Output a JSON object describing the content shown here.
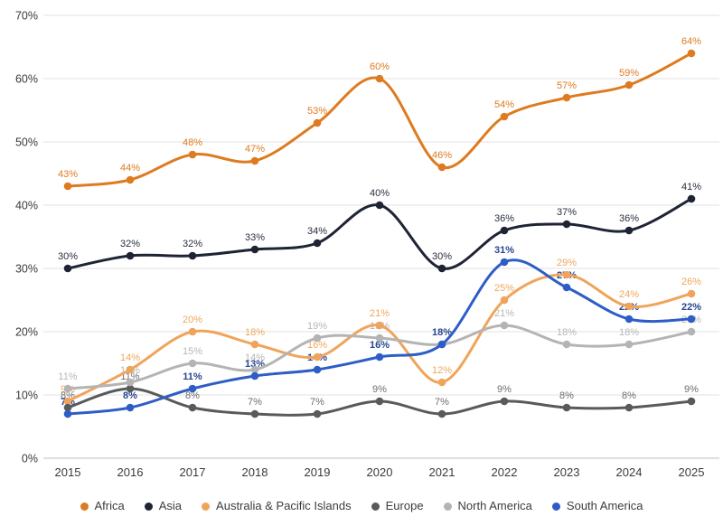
{
  "chart_data": {
    "type": "line",
    "title": "",
    "x_labels": [
      "2015",
      "2016",
      "2017",
      "2018",
      "2019",
      "2020",
      "2021",
      "2022",
      "2023",
      "2024",
      "2025"
    ],
    "ylim": [
      0,
      70
    ],
    "ytick_step": 10,
    "ytick_labels": [
      "0%",
      "10%",
      "20%",
      "30%",
      "40%",
      "50%",
      "60%",
      "70%"
    ],
    "grid": true,
    "legend_position": "bottom",
    "label_suffix": "%",
    "series": [
      {
        "name": "Africa",
        "color": "#DE7A1F",
        "label_color": "#DE7A1F",
        "bold_labels": false,
        "values": [
          43,
          44,
          48,
          47,
          53,
          60,
          46,
          54,
          57,
          59,
          64
        ]
      },
      {
        "name": "Asia",
        "color": "#1F2435",
        "label_color": "#2A2F40",
        "bold_labels": false,
        "values": [
          30,
          32,
          32,
          33,
          34,
          40,
          30,
          36,
          37,
          36,
          41
        ]
      },
      {
        "name": "Australia & Pacific Islands",
        "color": "#F0A45B",
        "label_color": "#EFA75C",
        "bold_labels": false,
        "values": [
          9,
          14,
          20,
          18,
          16,
          21,
          12,
          25,
          29,
          24,
          26
        ]
      },
      {
        "name": "Europe",
        "color": "#595A5C",
        "label_color": "#6E6E6E",
        "bold_labels": false,
        "values": [
          8,
          11,
          8,
          7,
          7,
          9,
          7,
          9,
          8,
          8,
          9
        ]
      },
      {
        "name": "North America",
        "color": "#B4B4B4",
        "label_color": "#B6B6B6",
        "bold_labels": false,
        "values": [
          11,
          12,
          15,
          14,
          19,
          19,
          18,
          21,
          18,
          18,
          20
        ]
      },
      {
        "name": "South America",
        "color": "#2E5DC6",
        "label_color": "#26478F",
        "bold_labels": true,
        "values": [
          7,
          8,
          11,
          13,
          14,
          16,
          18,
          31,
          27,
          22,
          22
        ]
      }
    ],
    "colors": {
      "gridline": "#E8E8E8",
      "baseline": "#CCCCCC",
      "axis_text": "#3A3A3A"
    }
  }
}
